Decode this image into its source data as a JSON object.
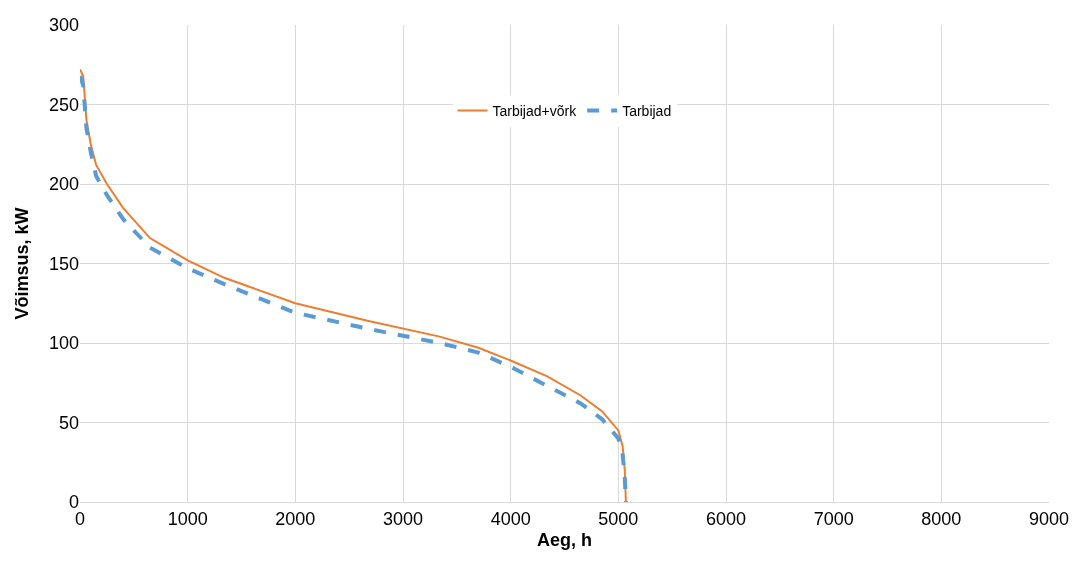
{
  "chart_data": {
    "type": "line",
    "xlabel": "Aeg, h",
    "ylabel": "Võimsus, kW",
    "xlim": [
      0,
      9000
    ],
    "xticks": [
      0,
      1000,
      2000,
      3000,
      4000,
      5000,
      6000,
      7000,
      8000,
      9000
    ],
    "ylim": [
      0,
      300
    ],
    "yticks": [
      0,
      50,
      100,
      150,
      200,
      250,
      300
    ],
    "grid": true,
    "legend": "top",
    "marker": "none",
    "series": [
      {
        "name": "Tarbijad+võrk",
        "color": "#ed7d31",
        "line_style": "solid",
        "x": [
          0,
          30,
          60,
          100,
          150,
          250,
          400,
          650,
          1000,
          1340,
          2000,
          2670,
          3340,
          3700,
          4000,
          4340,
          4650,
          4850,
          5000,
          5040,
          5060,
          5070
        ],
        "values": [
          272,
          268,
          240,
          225,
          212,
          200,
          185,
          166,
          152,
          141,
          125,
          114,
          104,
          97,
          89,
          79,
          67,
          57,
          45,
          35,
          20,
          0
        ]
      },
      {
        "name": "Tarbijad",
        "color": "#5b9bd5",
        "line_style": "dashed",
        "x": [
          0,
          30,
          60,
          100,
          150,
          250,
          400,
          650,
          1000,
          1340,
          2000,
          2670,
          3340,
          3700,
          4000,
          4340,
          4650,
          4850,
          5000,
          5040,
          5060,
          5070
        ],
        "values": [
          268,
          262,
          235,
          220,
          205,
          193,
          178,
          160,
          147,
          137,
          119,
          109,
          100,
          94,
          85,
          73,
          62,
          52,
          40,
          30,
          15,
          0
        ]
      }
    ]
  }
}
